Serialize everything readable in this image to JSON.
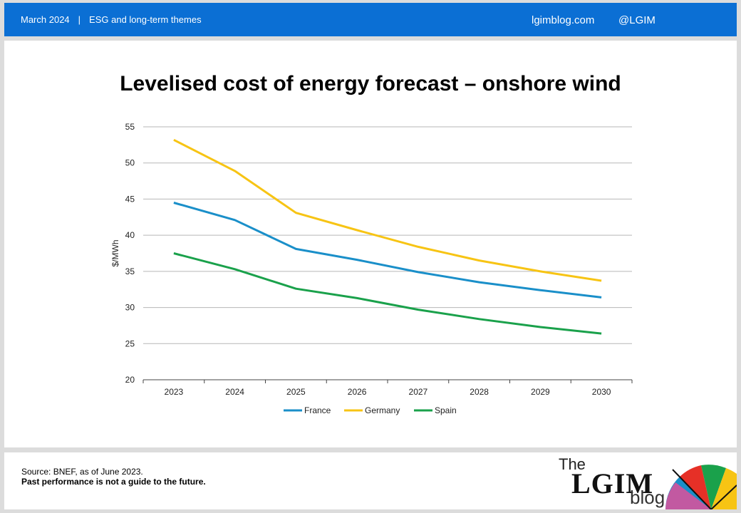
{
  "header": {
    "date": "March 2024",
    "separator": "|",
    "section": "ESG and long-term themes",
    "site": "lgimblog.com",
    "handle": "@LGIM"
  },
  "chart_data": {
    "type": "line",
    "title": "Levelised cost of energy forecast – onshore wind",
    "ylabel": "$/MWh",
    "xlabel": "",
    "categories": [
      "2023",
      "2024",
      "2025",
      "2026",
      "2027",
      "2028",
      "2029",
      "2030"
    ],
    "ylim": [
      20,
      55
    ],
    "yticks": [
      20,
      25,
      30,
      35,
      40,
      45,
      50,
      55
    ],
    "grid": true,
    "legend": "bottom",
    "series": [
      {
        "name": "France",
        "color": "#1a8fc9",
        "values": [
          44.5,
          42.1,
          38.1,
          36.6,
          34.9,
          33.5,
          32.4,
          31.4
        ]
      },
      {
        "name": "Germany",
        "color": "#f7c414",
        "values": [
          53.2,
          48.9,
          43.1,
          40.7,
          38.4,
          36.5,
          35.0,
          33.7
        ]
      },
      {
        "name": "Spain",
        "color": "#1aa14b",
        "values": [
          37.5,
          35.3,
          32.6,
          31.3,
          29.7,
          28.4,
          27.3,
          26.4
        ]
      }
    ]
  },
  "footer": {
    "source": "Source: BNEF, as of June 2023.",
    "disclaimer": "Past performance is not a guide to the future."
  },
  "logo": {
    "the": "The",
    "name": "LGIM",
    "blog": "blog"
  }
}
